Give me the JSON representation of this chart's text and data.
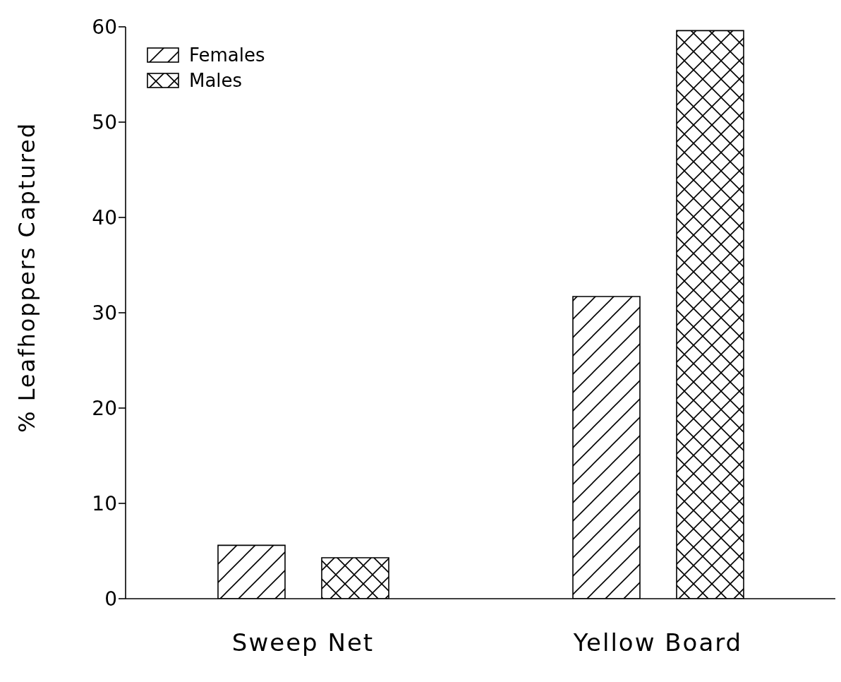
{
  "chart_data": {
    "type": "bar",
    "ylabel": "% Leafhoppers Captured",
    "categories": [
      "Sweep Net",
      "Yellow Board"
    ],
    "series": [
      {
        "name": "Females",
        "color": "#000000",
        "values": [
          5.6,
          31.7
        ]
      },
      {
        "name": "Males",
        "color": "#000000",
        "values": [
          4.3,
          59.6
        ]
      }
    ],
    "ylim": [
      0,
      60
    ],
    "yticks": [
      0,
      10,
      20,
      30,
      40,
      50,
      60
    ],
    "legend": "top left"
  }
}
